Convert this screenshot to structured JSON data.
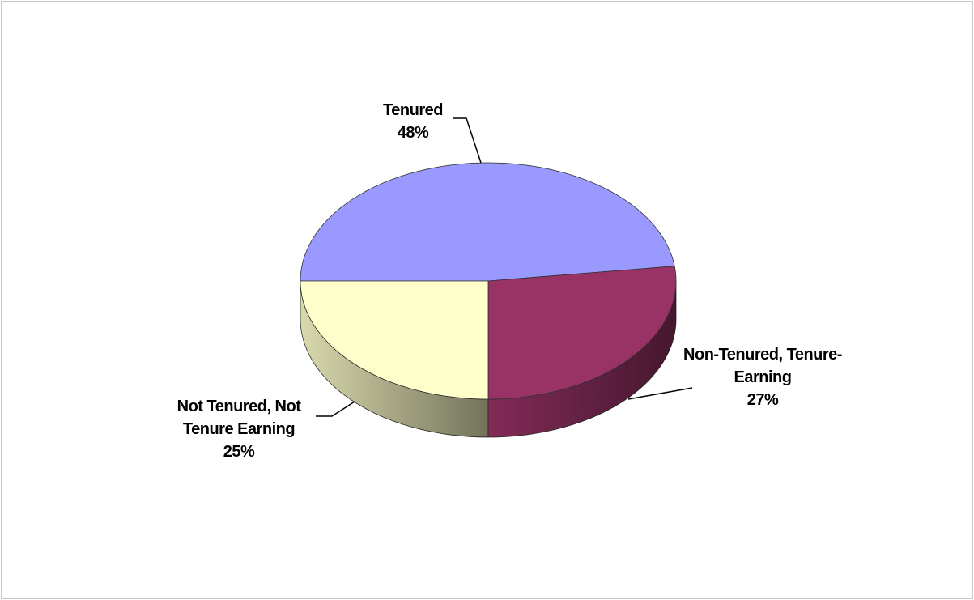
{
  "chart_data": {
    "type": "pie",
    "categories": [
      "Tenured",
      "Non-Tenured, Tenure-Earning",
      "Not Tenured, Not Tenure Earning"
    ],
    "values": [
      48,
      27,
      25
    ],
    "value_labels": [
      "48%",
      "27%",
      "25%"
    ],
    "colors": [
      "#9999ff",
      "#993366",
      "#ffffcc"
    ]
  }
}
